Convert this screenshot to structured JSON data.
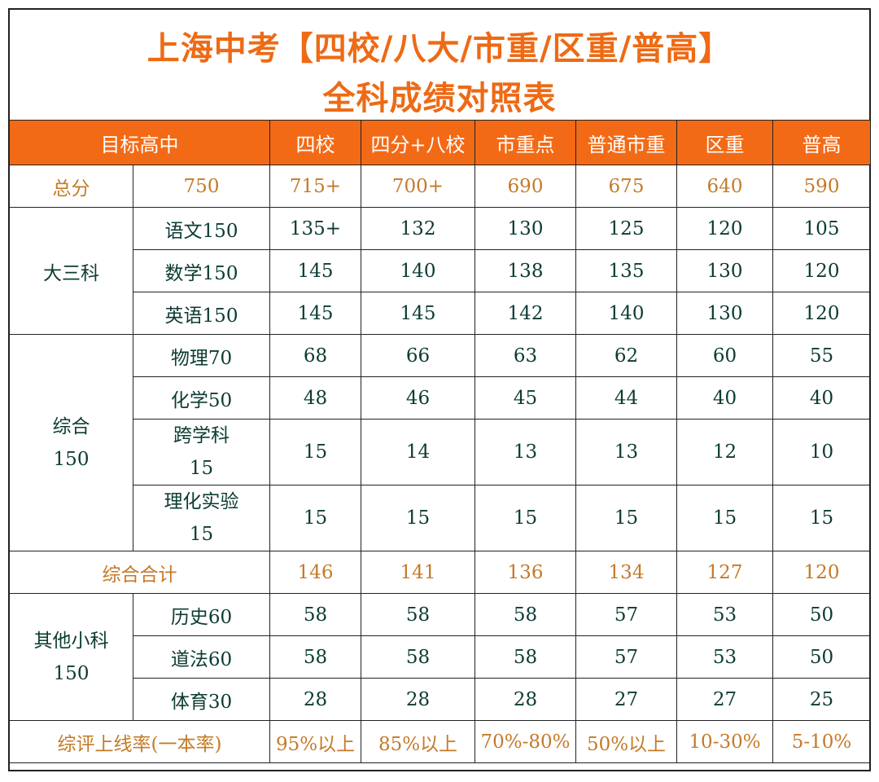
{
  "title": {
    "line1": "上海中考【四校/八大/市重/区重/普高】",
    "line2": "全科成绩对照表"
  },
  "header": {
    "target_label": "目标高中",
    "columns": [
      "四校",
      "四分+八校",
      "市重点",
      "普通市重",
      "区重",
      "普高"
    ]
  },
  "total": {
    "label": "总分",
    "full": "750",
    "values": [
      "715+",
      "700+",
      "690",
      "675",
      "640",
      "590"
    ]
  },
  "big_three": {
    "label": "大三科",
    "rows": [
      {
        "subject": "语文150",
        "values": [
          "135+",
          "132",
          "130",
          "125",
          "120",
          "105"
        ]
      },
      {
        "subject": "数学150",
        "values": [
          "145",
          "140",
          "138",
          "135",
          "130",
          "120"
        ]
      },
      {
        "subject": "英语150",
        "values": [
          "145",
          "145",
          "142",
          "140",
          "130",
          "120"
        ]
      }
    ]
  },
  "comprehensive": {
    "label_line1": "综合",
    "label_line2": "150",
    "rows": [
      {
        "subject": "物理70",
        "values": [
          "68",
          "66",
          "63",
          "62",
          "60",
          "55"
        ]
      },
      {
        "subject": "化学50",
        "values": [
          "48",
          "46",
          "45",
          "44",
          "40",
          "40"
        ]
      },
      {
        "subject_line1": "跨学科",
        "subject_line2": "15",
        "values": [
          "15",
          "14",
          "13",
          "13",
          "12",
          "10"
        ]
      },
      {
        "subject_line1": "理化实验",
        "subject_line2": "15",
        "values": [
          "15",
          "15",
          "15",
          "15",
          "15",
          "15"
        ]
      }
    ]
  },
  "comprehensive_total": {
    "label": "综合合计",
    "values": [
      "146",
      "141",
      "136",
      "134",
      "127",
      "120"
    ]
  },
  "others": {
    "label_line1": "其他小科",
    "label_line2": "150",
    "rows": [
      {
        "subject": "历史60",
        "values": [
          "58",
          "58",
          "58",
          "57",
          "53",
          "50"
        ]
      },
      {
        "subject": "道法60",
        "values": [
          "58",
          "58",
          "58",
          "57",
          "53",
          "50"
        ]
      },
      {
        "subject": "体育30",
        "values": [
          "28",
          "28",
          "28",
          "27",
          "27",
          "25"
        ]
      }
    ]
  },
  "rate": {
    "label": "综评上线率(一本率)",
    "values": [
      "95%以上",
      "85%以上",
      "70%-80%",
      "50%以上",
      "10-30%",
      "5-10%"
    ]
  },
  "colors": {
    "header_bg": "#f36a16",
    "title": "#ee6a14",
    "highlight_text": "#c57a28",
    "body_text": "#0c3b33"
  }
}
